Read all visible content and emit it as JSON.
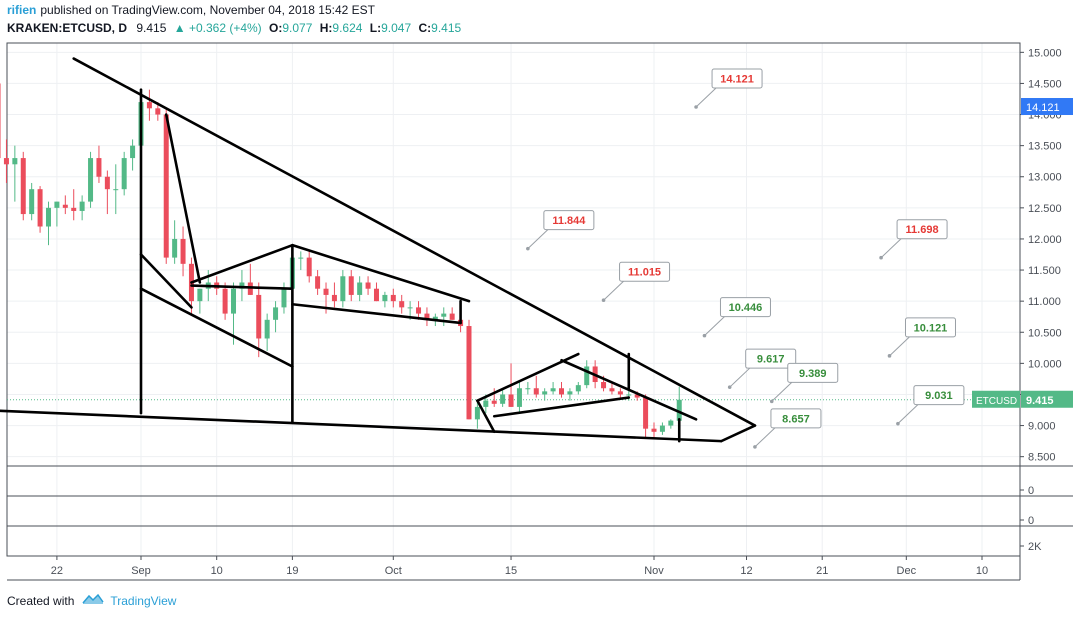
{
  "header": {
    "user": "rifien",
    "published_text": "published on TradingView.com, November 04, 2018 15:42 EST",
    "symbol": "KRAKEN:ETCUSD, D",
    "price": "9.415",
    "change": "+0.362 (+4%)",
    "open_label": "O:",
    "open_value": "9.077",
    "high_label": "H:",
    "high_value": "9.624",
    "low_label": "L:",
    "low_value": "9.047",
    "close_label": "C:",
    "close_value": "9.415"
  },
  "footer": {
    "created_with": "Created with",
    "brand": "TradingView"
  },
  "colors": {
    "up": "#53b987",
    "down": "#eb4d5c",
    "label_red": "#e53935",
    "label_green": "#388e3c",
    "accent": "#2a9fd6"
  },
  "chart_data": {
    "type": "candlestick",
    "title": "KRAKEN:ETCUSD, D",
    "ylim": [
      8.35,
      15.15
    ],
    "y_ticks": [
      "15.000",
      "14.500",
      "14.000",
      "13.500",
      "13.000",
      "12.500",
      "12.000",
      "11.500",
      "11.000",
      "10.500",
      "10.000",
      "9.500",
      "9.000",
      "8.500"
    ],
    "x_ticks": [
      "22",
      "Sep",
      "10",
      "19",
      "Oct",
      "15",
      "Nov",
      "12",
      "21",
      "Dec",
      "10"
    ],
    "x_tick_dates": [
      "2018-08-22",
      "2018-09-01",
      "2018-09-10",
      "2018-09-19",
      "2018-10-01",
      "2018-10-15",
      "2018-11-01",
      "2018-11-12",
      "2018-11-21",
      "2018-12-01",
      "2018-12-10"
    ],
    "price_tags": [
      {
        "text": "14.121",
        "color": "#3179f5"
      },
      {
        "text": "ETCUSD",
        "value": "9.415",
        "color": "#53b987"
      }
    ],
    "sub_panes": [
      {
        "label": "0"
      },
      {
        "label": "0"
      },
      {
        "label": "2K"
      }
    ],
    "candles": [
      {
        "d": "2018-08-14",
        "o": 13.5,
        "h": 14.6,
        "l": 13.0,
        "c": 14.5
      },
      {
        "d": "2018-08-15",
        "o": 14.5,
        "h": 14.55,
        "l": 13.0,
        "c": 13.3
      },
      {
        "d": "2018-08-16",
        "o": 13.3,
        "h": 13.6,
        "l": 12.9,
        "c": 13.2
      },
      {
        "d": "2018-08-17",
        "o": 13.2,
        "h": 13.5,
        "l": 12.6,
        "c": 13.3
      },
      {
        "d": "2018-08-18",
        "o": 13.3,
        "h": 13.4,
        "l": 12.3,
        "c": 12.4
      },
      {
        "d": "2018-08-19",
        "o": 12.4,
        "h": 12.9,
        "l": 12.3,
        "c": 12.8
      },
      {
        "d": "2018-08-20",
        "o": 12.8,
        "h": 12.85,
        "l": 12.1,
        "c": 12.2
      },
      {
        "d": "2018-08-21",
        "o": 12.2,
        "h": 12.6,
        "l": 11.9,
        "c": 12.5
      },
      {
        "d": "2018-08-22",
        "o": 12.5,
        "h": 12.6,
        "l": 12.2,
        "c": 12.6
      },
      {
        "d": "2018-08-23",
        "o": 12.55,
        "h": 12.7,
        "l": 12.4,
        "c": 12.5
      },
      {
        "d": "2018-08-24",
        "o": 12.5,
        "h": 12.8,
        "l": 12.3,
        "c": 12.45
      },
      {
        "d": "2018-08-25",
        "o": 12.45,
        "h": 12.7,
        "l": 12.3,
        "c": 12.6
      },
      {
        "d": "2018-08-26",
        "o": 12.6,
        "h": 13.4,
        "l": 12.5,
        "c": 13.3
      },
      {
        "d": "2018-08-27",
        "o": 13.3,
        "h": 13.5,
        "l": 12.9,
        "c": 13.0
      },
      {
        "d": "2018-08-28",
        "o": 13.0,
        "h": 13.1,
        "l": 12.4,
        "c": 12.8
      },
      {
        "d": "2018-08-29",
        "o": 12.8,
        "h": 13.2,
        "l": 12.4,
        "c": 12.8
      },
      {
        "d": "2018-08-30",
        "o": 12.8,
        "h": 13.4,
        "l": 12.7,
        "c": 13.3
      },
      {
        "d": "2018-08-31",
        "o": 13.3,
        "h": 13.6,
        "l": 13.1,
        "c": 13.5
      },
      {
        "d": "2018-09-01",
        "o": 13.5,
        "h": 14.3,
        "l": 13.4,
        "c": 14.2
      },
      {
        "d": "2018-09-02",
        "o": 14.2,
        "h": 14.4,
        "l": 13.9,
        "c": 14.1
      },
      {
        "d": "2018-09-03",
        "o": 14.1,
        "h": 14.2,
        "l": 13.9,
        "c": 14.0
      },
      {
        "d": "2018-09-04",
        "o": 14.0,
        "h": 14.1,
        "l": 11.6,
        "c": 11.7
      },
      {
        "d": "2018-09-05",
        "o": 11.7,
        "h": 12.3,
        "l": 11.6,
        "c": 12.0
      },
      {
        "d": "2018-09-06",
        "o": 12.0,
        "h": 12.2,
        "l": 11.4,
        "c": 11.6
      },
      {
        "d": "2018-09-07",
        "o": 11.6,
        "h": 11.7,
        "l": 10.8,
        "c": 11.0
      },
      {
        "d": "2018-09-08",
        "o": 11.0,
        "h": 11.2,
        "l": 10.8,
        "c": 11.2
      },
      {
        "d": "2018-09-09",
        "o": 11.2,
        "h": 11.5,
        "l": 11.0,
        "c": 11.3
      },
      {
        "d": "2018-09-10",
        "o": 11.3,
        "h": 11.4,
        "l": 11.1,
        "c": 11.2
      },
      {
        "d": "2018-09-11",
        "o": 11.2,
        "h": 11.3,
        "l": 10.7,
        "c": 10.8
      },
      {
        "d": "2018-09-12",
        "o": 10.8,
        "h": 11.3,
        "l": 10.3,
        "c": 11.2
      },
      {
        "d": "2018-09-13",
        "o": 11.2,
        "h": 11.5,
        "l": 11.0,
        "c": 11.3
      },
      {
        "d": "2018-09-14",
        "o": 11.3,
        "h": 11.6,
        "l": 11.1,
        "c": 11.1
      },
      {
        "d": "2018-09-15",
        "o": 11.1,
        "h": 11.3,
        "l": 10.1,
        "c": 10.4
      },
      {
        "d": "2018-09-16",
        "o": 10.4,
        "h": 10.8,
        "l": 10.2,
        "c": 10.7
      },
      {
        "d": "2018-09-17",
        "o": 10.7,
        "h": 11.0,
        "l": 10.5,
        "c": 10.9
      },
      {
        "d": "2018-09-18",
        "o": 10.9,
        "h": 11.3,
        "l": 10.8,
        "c": 11.2
      },
      {
        "d": "2018-09-19",
        "o": 11.2,
        "h": 11.8,
        "l": 11.1,
        "c": 11.7
      },
      {
        "d": "2018-09-20",
        "o": 11.7,
        "h": 11.8,
        "l": 11.5,
        "c": 11.7
      },
      {
        "d": "2018-09-21",
        "o": 11.7,
        "h": 11.8,
        "l": 11.3,
        "c": 11.4
      },
      {
        "d": "2018-09-22",
        "o": 11.4,
        "h": 11.5,
        "l": 11.1,
        "c": 11.2
      },
      {
        "d": "2018-09-23",
        "o": 11.2,
        "h": 11.3,
        "l": 10.8,
        "c": 11.1
      },
      {
        "d": "2018-09-24",
        "o": 11.1,
        "h": 11.3,
        "l": 10.9,
        "c": 11.0
      },
      {
        "d": "2018-09-25",
        "o": 11.0,
        "h": 11.5,
        "l": 10.9,
        "c": 11.4
      },
      {
        "d": "2018-09-26",
        "o": 11.4,
        "h": 11.5,
        "l": 11.0,
        "c": 11.1
      },
      {
        "d": "2018-09-27",
        "o": 11.1,
        "h": 11.4,
        "l": 11.0,
        "c": 11.3
      },
      {
        "d": "2018-09-28",
        "o": 11.3,
        "h": 11.4,
        "l": 11.1,
        "c": 11.2
      },
      {
        "d": "2018-09-29",
        "o": 11.2,
        "h": 11.3,
        "l": 11.0,
        "c": 11.0
      },
      {
        "d": "2018-09-30",
        "o": 11.0,
        "h": 11.15,
        "l": 10.9,
        "c": 11.1
      },
      {
        "d": "2018-10-01",
        "o": 11.1,
        "h": 11.2,
        "l": 10.9,
        "c": 11.0
      },
      {
        "d": "2018-10-02",
        "o": 11.0,
        "h": 11.1,
        "l": 10.8,
        "c": 10.9
      },
      {
        "d": "2018-10-03",
        "o": 10.9,
        "h": 11.0,
        "l": 10.7,
        "c": 10.9
      },
      {
        "d": "2018-10-04",
        "o": 10.9,
        "h": 11.0,
        "l": 10.7,
        "c": 10.8
      },
      {
        "d": "2018-10-05",
        "o": 10.8,
        "h": 10.9,
        "l": 10.6,
        "c": 10.7
      },
      {
        "d": "2018-10-06",
        "o": 10.7,
        "h": 10.8,
        "l": 10.6,
        "c": 10.75
      },
      {
        "d": "2018-10-07",
        "o": 10.75,
        "h": 10.9,
        "l": 10.6,
        "c": 10.8
      },
      {
        "d": "2018-10-08",
        "o": 10.8,
        "h": 10.9,
        "l": 10.7,
        "c": 10.7
      },
      {
        "d": "2018-10-09",
        "o": 10.7,
        "h": 10.75,
        "l": 10.5,
        "c": 10.6
      },
      {
        "d": "2018-10-10",
        "o": 10.6,
        "h": 10.7,
        "l": 9.1,
        "c": 9.1
      },
      {
        "d": "2018-10-11",
        "o": 9.1,
        "h": 9.4,
        "l": 8.95,
        "c": 9.3
      },
      {
        "d": "2018-10-12",
        "o": 9.3,
        "h": 9.5,
        "l": 9.2,
        "c": 9.4
      },
      {
        "d": "2018-10-13",
        "o": 9.4,
        "h": 9.6,
        "l": 9.3,
        "c": 9.35
      },
      {
        "d": "2018-10-14",
        "o": 9.35,
        "h": 9.6,
        "l": 9.3,
        "c": 9.5
      },
      {
        "d": "2018-10-15",
        "o": 9.5,
        "h": 10.0,
        "l": 9.3,
        "c": 9.3
      },
      {
        "d": "2018-10-16",
        "o": 9.3,
        "h": 9.7,
        "l": 9.2,
        "c": 9.6
      },
      {
        "d": "2018-10-17",
        "o": 9.6,
        "h": 9.7,
        "l": 9.5,
        "c": 9.6
      },
      {
        "d": "2018-10-18",
        "o": 9.6,
        "h": 9.8,
        "l": 9.45,
        "c": 9.5
      },
      {
        "d": "2018-10-19",
        "o": 9.5,
        "h": 9.6,
        "l": 9.4,
        "c": 9.55
      },
      {
        "d": "2018-10-20",
        "o": 9.55,
        "h": 9.7,
        "l": 9.5,
        "c": 9.6
      },
      {
        "d": "2018-10-21",
        "o": 9.6,
        "h": 9.7,
        "l": 9.45,
        "c": 9.5
      },
      {
        "d": "2018-10-22",
        "o": 9.5,
        "h": 9.6,
        "l": 9.4,
        "c": 9.55
      },
      {
        "d": "2018-10-23",
        "o": 9.55,
        "h": 9.7,
        "l": 9.5,
        "c": 9.65
      },
      {
        "d": "2018-10-24",
        "o": 9.65,
        "h": 10.05,
        "l": 9.6,
        "c": 9.95
      },
      {
        "d": "2018-10-25",
        "o": 9.95,
        "h": 10.05,
        "l": 9.6,
        "c": 9.7
      },
      {
        "d": "2018-10-26",
        "o": 9.7,
        "h": 9.8,
        "l": 9.55,
        "c": 9.6
      },
      {
        "d": "2018-10-27",
        "o": 9.6,
        "h": 9.7,
        "l": 9.5,
        "c": 9.55
      },
      {
        "d": "2018-10-28",
        "o": 9.55,
        "h": 9.6,
        "l": 9.45,
        "c": 9.5
      },
      {
        "d": "2018-10-29",
        "o": 9.5,
        "h": 9.6,
        "l": 9.4,
        "c": 9.5
      },
      {
        "d": "2018-10-30",
        "o": 9.5,
        "h": 9.55,
        "l": 9.4,
        "c": 9.45
      },
      {
        "d": "2018-10-31",
        "o": 9.45,
        "h": 9.5,
        "l": 8.8,
        "c": 8.95
      },
      {
        "d": "2018-11-01",
        "o": 8.95,
        "h": 9.05,
        "l": 8.8,
        "c": 8.9
      },
      {
        "d": "2018-11-02",
        "o": 8.9,
        "h": 9.05,
        "l": 8.85,
        "c": 9.0
      },
      {
        "d": "2018-11-03",
        "o": 9.0,
        "h": 9.1,
        "l": 8.95,
        "c": 9.08
      },
      {
        "d": "2018-11-04",
        "o": 9.077,
        "h": 9.624,
        "l": 9.047,
        "c": 9.415
      }
    ],
    "annotations": [
      {
        "text": "14.121",
        "color": "#e53935",
        "value": 14.121,
        "date": "2018-11-06"
      },
      {
        "text": "11.844",
        "color": "#e53935",
        "value": 11.844,
        "date": "2018-10-17"
      },
      {
        "text": "11.015",
        "color": "#e53935",
        "value": 11.015,
        "date": "2018-10-26"
      },
      {
        "text": "10.446",
        "color": "#388e3c",
        "value": 10.446,
        "date": "2018-11-07"
      },
      {
        "text": "9.617",
        "color": "#388e3c",
        "value": 9.617,
        "date": "2018-11-10"
      },
      {
        "text": "9.389",
        "color": "#388e3c",
        "value": 9.389,
        "date": "2018-11-15"
      },
      {
        "text": "8.657",
        "color": "#388e3c",
        "value": 8.657,
        "date": "2018-11-13"
      },
      {
        "text": "11.698",
        "color": "#e53935",
        "value": 11.698,
        "date": "2018-11-28"
      },
      {
        "text": "10.121",
        "color": "#388e3c",
        "value": 10.121,
        "date": "2018-11-29"
      },
      {
        "text": "9.031",
        "color": "#388e3c",
        "value": 9.031,
        "date": "2018-11-30"
      }
    ],
    "drawn_lines": [
      {
        "from": [
          "2018-08-24",
          14.9
        ],
        "to": [
          "2018-11-13",
          9.0
        ]
      },
      {
        "from": [
          "2018-08-13",
          9.25
        ],
        "to": [
          "2018-11-09",
          8.75
        ]
      },
      {
        "from": [
          "2018-11-09",
          8.75
        ],
        "to": [
          "2018-11-13",
          9.0
        ]
      },
      {
        "from": [
          "2018-09-01",
          14.4
        ],
        "to": [
          "2018-09-01",
          9.2
        ]
      },
      {
        "from": [
          "2018-09-01",
          11.75
        ],
        "to": [
          "2018-09-07",
          10.9
        ]
      },
      {
        "from": [
          "2018-09-01",
          11.2
        ],
        "to": [
          "2018-09-19",
          9.95
        ]
      },
      {
        "from": [
          "2018-09-04",
          14.0
        ],
        "to": [
          "2018-09-08",
          11.3
        ]
      },
      {
        "from": [
          "2018-09-07",
          11.3
        ],
        "to": [
          "2018-09-19",
          11.9
        ]
      },
      {
        "from": [
          "2018-09-07",
          11.25
        ],
        "to": [
          "2018-09-19",
          11.2
        ]
      },
      {
        "from": [
          "2018-09-19",
          11.9
        ],
        "to": [
          "2018-10-10",
          11.0
        ]
      },
      {
        "from": [
          "2018-09-19",
          10.95
        ],
        "to": [
          "2018-10-09",
          10.65
        ]
      },
      {
        "from": [
          "2018-10-09",
          10.65
        ],
        "to": [
          "2018-10-09",
          11.0
        ]
      },
      {
        "from": [
          "2018-09-19",
          11.9
        ],
        "to": [
          "2018-09-19",
          9.05
        ]
      },
      {
        "from": [
          "2018-10-11",
          9.4
        ],
        "to": [
          "2018-10-13",
          8.9
        ]
      },
      {
        "from": [
          "2018-10-11",
          9.4
        ],
        "to": [
          "2018-10-23",
          10.15
        ]
      },
      {
        "from": [
          "2018-10-13",
          9.15
        ],
        "to": [
          "2018-10-29",
          9.45
        ]
      },
      {
        "from": [
          "2018-10-21",
          10.05
        ],
        "to": [
          "2018-11-06",
          9.1
        ]
      },
      {
        "from": [
          "2018-10-29",
          10.15
        ],
        "to": [
          "2018-10-29",
          9.6
        ]
      },
      {
        "from": [
          "2018-11-04",
          9.1
        ],
        "to": [
          "2018-11-04",
          8.75
        ]
      }
    ]
  }
}
